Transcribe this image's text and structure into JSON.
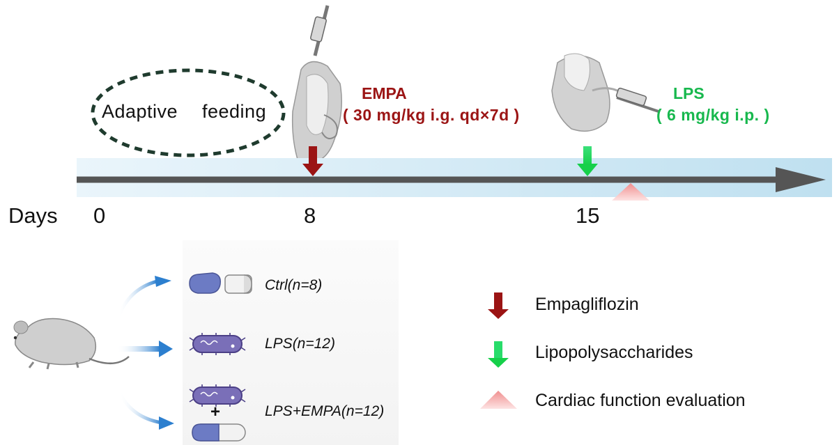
{
  "header": {
    "adaptive_label": "Adaptive",
    "feeding_label": "feeding",
    "empa_title": "EMPA",
    "empa_dose": "( 30 mg/kg i.g. qd×7d )",
    "lps_title": "LPS",
    "lps_dose": "( 6 mg/kg i.p. )"
  },
  "timeline": {
    "axis_label": "Days",
    "ticks": [
      "0",
      "8",
      "15"
    ]
  },
  "groups": [
    {
      "label": "Ctrl(n=8)"
    },
    {
      "label": "LPS(n=12)"
    },
    {
      "label": "LPS+EMPA(n=12)"
    }
  ],
  "plus_sign": "+",
  "legend": [
    {
      "label": "Empagliflozin",
      "icon": "dark-red-arrow-icon"
    },
    {
      "label": "Lipopolysaccharides",
      "icon": "green-arrow-icon"
    },
    {
      "label": "Cardiac function evaluation",
      "icon": "pink-triangle-icon"
    }
  ],
  "colors": {
    "empa": "#9b1414",
    "lps": "#18b84e",
    "timeline_band": "#d6ecf6",
    "axis": "#555555",
    "cardiac": "#f4a3a3",
    "capsule_blue": "#6c7bc4",
    "bacteria": "#7a6fb8"
  }
}
